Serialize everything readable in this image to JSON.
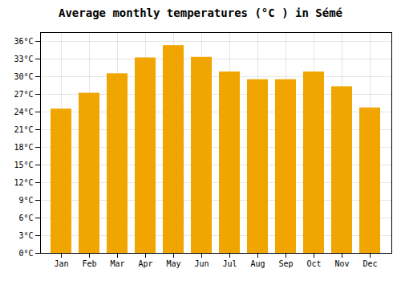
{
  "chart_data": {
    "type": "bar",
    "title": "Average monthly temperatures (°C ) in Sémé",
    "categories": [
      "Jan",
      "Feb",
      "Mar",
      "Apr",
      "May",
      "Jun",
      "Jul",
      "Aug",
      "Sep",
      "Oct",
      "Nov",
      "Dec"
    ],
    "values": [
      24.5,
      27.2,
      30.5,
      33.2,
      35.3,
      33.3,
      30.8,
      29.5,
      29.5,
      30.8,
      28.3,
      24.7
    ],
    "color": "#F0A500",
    "ylim": [
      0,
      37.5
    ],
    "yticks": [
      {
        "value": 0,
        "label": "0°C"
      },
      {
        "value": 3,
        "label": "3°C"
      },
      {
        "value": 6,
        "label": "6°C"
      },
      {
        "value": 9,
        "label": "9°C"
      },
      {
        "value": 12,
        "label": "12°C"
      },
      {
        "value": 15,
        "label": "15°C"
      },
      {
        "value": 18,
        "label": "18°C"
      },
      {
        "value": 21,
        "label": "21°C"
      },
      {
        "value": 24,
        "label": "24°C"
      },
      {
        "value": 27,
        "label": "27°C"
      },
      {
        "value": 30,
        "label": "30°C"
      },
      {
        "value": 33,
        "label": "33°C"
      },
      {
        "value": 36,
        "label": "36°C"
      }
    ],
    "grid": true
  }
}
